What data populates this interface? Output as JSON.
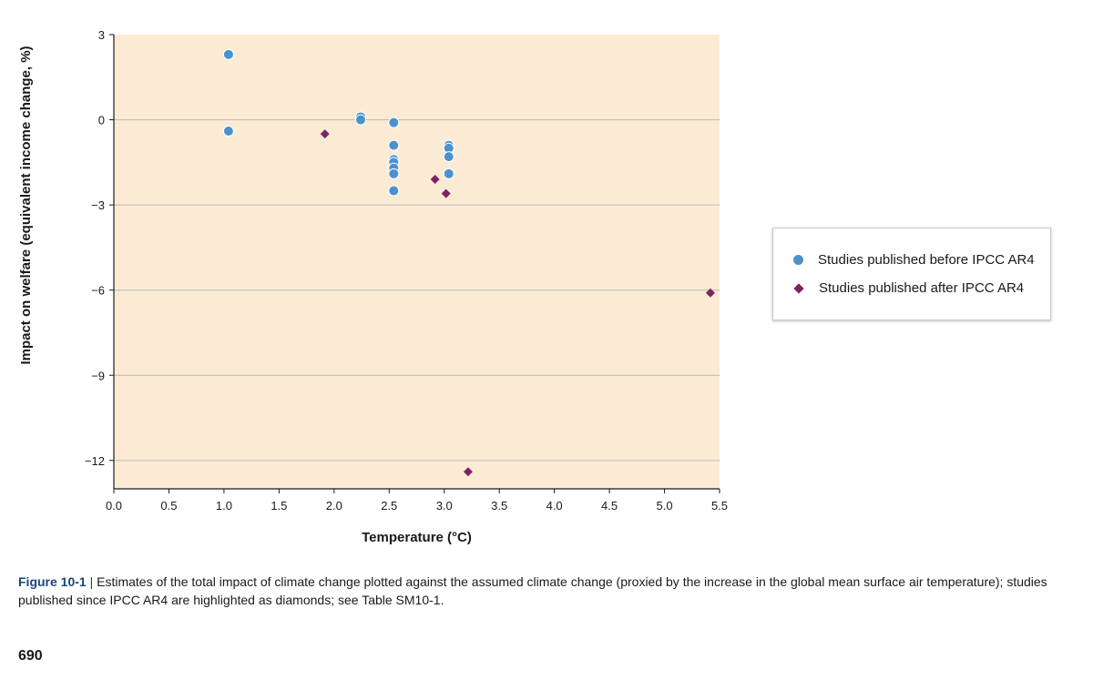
{
  "chart_data": {
    "type": "scatter",
    "xlabel": "Temperature (°C)",
    "ylabel": "Impact on welfare (equivalent income change, %)",
    "xlim": [
      0.0,
      5.5
    ],
    "ylim": [
      -13,
      3
    ],
    "x_ticks": [
      "0.0",
      "0.5",
      "1.0",
      "1.5",
      "2.0",
      "2.5",
      "3.0",
      "3.5",
      "4.0",
      "4.5",
      "5.0",
      "5.5"
    ],
    "y_ticks": [
      "3",
      "0",
      "−3",
      "−6",
      "−9",
      "−12"
    ],
    "grid": "horizontal",
    "legend_position": "right",
    "series": [
      {
        "name": "Studies published before IPCC AR4",
        "marker": "circle",
        "color": "#4a92cf",
        "points": [
          [
            1.0,
            2.3
          ],
          [
            1.0,
            -0.4
          ],
          [
            2.2,
            0.1
          ],
          [
            2.2,
            0.0
          ],
          [
            2.5,
            -0.1
          ],
          [
            2.5,
            -0.9
          ],
          [
            2.5,
            -1.4
          ],
          [
            2.5,
            -1.5
          ],
          [
            2.5,
            -1.7
          ],
          [
            2.5,
            -1.9
          ],
          [
            2.5,
            -2.5
          ],
          [
            3.0,
            -0.9
          ],
          [
            3.0,
            -1.0
          ],
          [
            3.0,
            -1.3
          ],
          [
            3.0,
            -1.9
          ]
        ]
      },
      {
        "name": "Studies published after IPCC AR4",
        "marker": "diamond",
        "color": "#7b2464",
        "points": [
          [
            1.9,
            -0.5
          ],
          [
            2.9,
            -2.1
          ],
          [
            3.0,
            -2.6
          ],
          [
            5.4,
            -6.1
          ],
          [
            3.2,
            -12.4
          ]
        ]
      }
    ]
  },
  "caption": {
    "label": "Figure 10-1",
    "separator": " | ",
    "text": "Estimates of the total impact of climate change plotted against the assumed climate change (proxied by the increase in the global mean surface air temperature); studies published since IPCC AR4 are highlighted as diamonds; see Table SM10-1."
  },
  "page_number": "690",
  "colors": {
    "plot_background": "#fcebd4",
    "gridline": "#b8b8b8",
    "axis": "#1a1a1a",
    "caption_label": "#17467a"
  }
}
